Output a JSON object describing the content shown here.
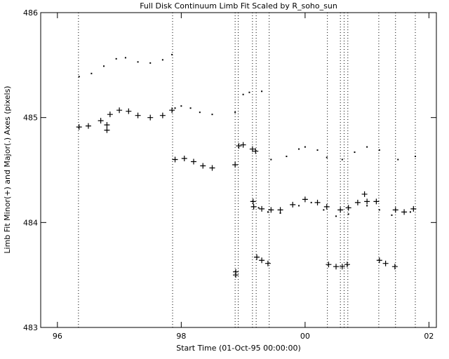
{
  "chart_data": {
    "type": "scatter",
    "title": "Full Disk Continuum Limb Fit Scaled by R_soho_sun",
    "xlabel": "Start Time (01-Oct-95 00:00:00)",
    "ylabel": "Limb Fit Minor(+) and Major(.) Axes (pixels)",
    "xlim": [
      95.73,
      102.12
    ],
    "xticks": [
      96,
      98,
      {
        "value": 100,
        "label": "00"
      },
      {
        "value": 102,
        "label": "02"
      }
    ],
    "ylim": [
      483,
      486
    ],
    "yticks": [
      483,
      484,
      485,
      486
    ],
    "vlines": [
      96.34,
      97.86,
      98.87,
      98.92,
      99.15,
      99.21,
      99.42,
      100.36,
      100.57,
      100.63,
      100.69,
      101.19,
      101.46,
      101.78
    ],
    "color": "#000000",
    "series": [
      {
        "marker": "plus",
        "x": [
          96.35,
          96.5,
          96.7,
          96.85,
          97.0,
          97.15,
          97.3,
          97.5,
          97.7,
          97.85,
          96.8,
          96.8,
          97.9,
          98.05,
          98.2,
          98.35,
          98.5,
          98.87,
          98.93,
          99.0,
          99.15,
          99.2,
          99.16,
          99.17,
          99.3,
          99.45,
          99.6,
          99.8,
          100.0,
          100.2,
          100.35,
          100.57,
          100.7,
          100.85,
          101.0,
          101.15,
          100.96,
          101.46,
          101.6,
          101.75,
          98.88,
          98.88,
          99.22,
          99.3,
          99.4,
          100.38,
          100.5,
          100.6,
          100.68,
          101.2,
          101.3,
          101.45
        ],
        "values": [
          484.91,
          484.92,
          484.97,
          485.03,
          485.07,
          485.06,
          485.02,
          485.0,
          485.02,
          485.07,
          484.93,
          484.88,
          484.6,
          484.61,
          484.58,
          484.54,
          484.52,
          484.55,
          484.73,
          484.74,
          484.7,
          484.68,
          484.2,
          484.15,
          484.13,
          484.12,
          484.12,
          484.17,
          484.22,
          484.19,
          484.15,
          484.12,
          484.14,
          484.19,
          484.2,
          484.2,
          484.27,
          484.12,
          484.1,
          484.13,
          483.53,
          483.5,
          483.67,
          483.64,
          483.61,
          483.6,
          483.58,
          483.58,
          483.6,
          483.64,
          483.61,
          483.58
        ]
      },
      {
        "marker": "dot",
        "x": [
          96.35,
          96.55,
          96.75,
          96.95,
          97.1,
          97.3,
          97.5,
          97.7,
          97.85,
          97.9,
          98.0,
          98.15,
          98.3,
          98.5,
          98.87,
          99.0,
          99.1,
          99.3,
          99.45,
          99.7,
          99.9,
          100.0,
          100.2,
          100.35,
          100.6,
          100.8,
          101.0,
          101.2,
          101.5,
          101.78,
          99.25,
          99.4,
          99.6,
          99.9,
          100.1,
          100.3,
          100.5,
          100.7,
          101.0,
          101.2,
          101.4,
          101.7
        ],
        "values": [
          485.39,
          485.42,
          485.49,
          485.56,
          485.57,
          485.53,
          485.52,
          485.55,
          485.6,
          485.09,
          485.11,
          485.09,
          485.05,
          485.03,
          485.05,
          485.22,
          485.24,
          485.25,
          484.6,
          484.63,
          484.7,
          484.72,
          484.69,
          484.62,
          484.6,
          484.67,
          484.72,
          484.69,
          484.6,
          484.63,
          484.14,
          484.1,
          484.09,
          484.16,
          484.19,
          484.12,
          484.06,
          484.08,
          484.16,
          484.12,
          484.07,
          484.1
        ]
      }
    ]
  }
}
